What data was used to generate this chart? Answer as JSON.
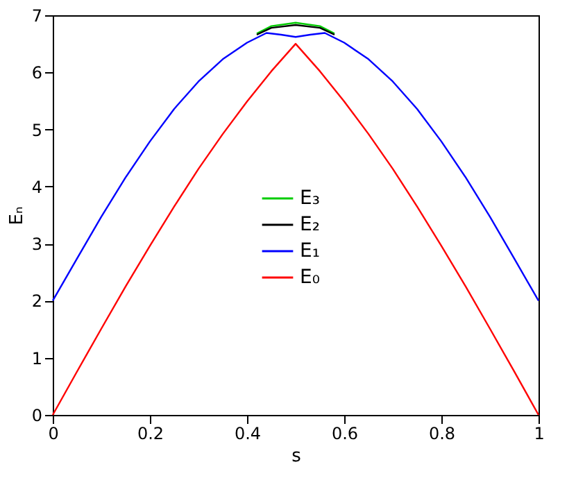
{
  "chart_data": {
    "type": "line",
    "xlabel": "s",
    "ylabel": "Eₙ",
    "xlim": [
      0,
      1
    ],
    "ylim": [
      0,
      7
    ],
    "xticks": [
      0,
      0.2,
      0.4,
      0.6,
      0.8,
      1
    ],
    "yticks": [
      0,
      1,
      2,
      3,
      4,
      5,
      6,
      7
    ],
    "grid": false,
    "legend": "center",
    "marker": "none",
    "line_style": "solid",
    "series": [
      {
        "name": "E₃",
        "color": "#00cc00",
        "x": [
          0.42,
          0.45,
          0.5,
          0.55,
          0.58
        ],
        "values": [
          6.68,
          6.81,
          6.87,
          6.81,
          6.68
        ]
      },
      {
        "name": "E₂",
        "color": "#000000",
        "x": [
          0.42,
          0.45,
          0.5,
          0.55,
          0.58
        ],
        "values": [
          6.66,
          6.78,
          6.83,
          6.78,
          6.66
        ]
      },
      {
        "name": "E₁",
        "color": "#0000ff",
        "x": [
          0,
          0.05,
          0.1,
          0.15,
          0.2,
          0.25,
          0.3,
          0.35,
          0.4,
          0.44,
          0.47,
          0.5,
          0.53,
          0.56,
          0.6,
          0.65,
          0.7,
          0.75,
          0.8,
          0.85,
          0.9,
          0.95,
          1
        ],
        "values": [
          2,
          2.74,
          3.47,
          4.16,
          4.79,
          5.36,
          5.84,
          6.23,
          6.52,
          6.69,
          6.66,
          6.62,
          6.66,
          6.69,
          6.52,
          6.23,
          5.84,
          5.36,
          4.79,
          4.16,
          3.47,
          2.74,
          2
        ]
      },
      {
        "name": "E₀",
        "color": "#ff0000",
        "x": [
          0,
          0.05,
          0.1,
          0.15,
          0.2,
          0.25,
          0.3,
          0.35,
          0.4,
          0.45,
          0.5,
          0.55,
          0.6,
          0.65,
          0.7,
          0.75,
          0.8,
          0.85,
          0.9,
          0.95,
          1
        ],
        "values": [
          0,
          0.76,
          1.51,
          2.25,
          2.96,
          3.65,
          4.31,
          4.92,
          5.49,
          6.02,
          6.5,
          6.02,
          5.49,
          4.92,
          4.31,
          3.65,
          2.96,
          2.25,
          1.51,
          0.76,
          0
        ]
      }
    ]
  }
}
